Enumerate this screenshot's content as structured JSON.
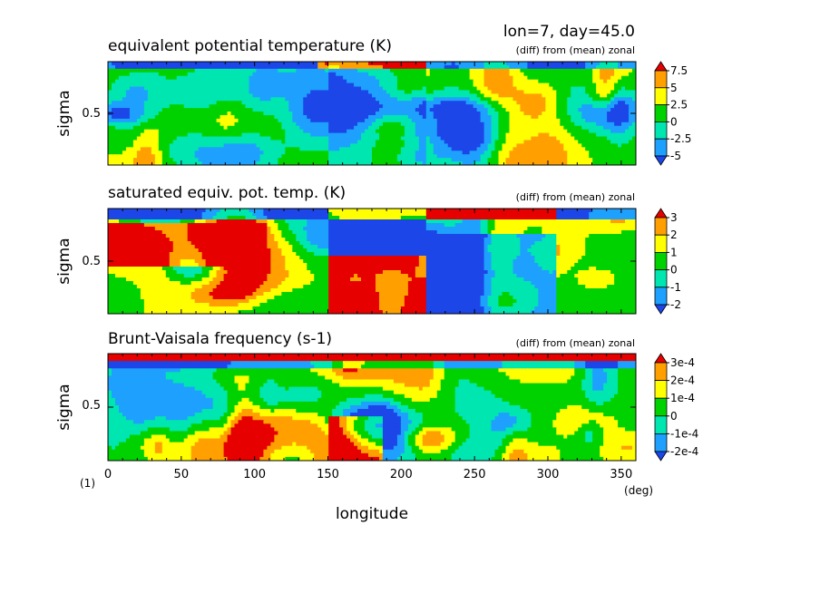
{
  "header": {
    "text": "lon=7, day=45.0"
  },
  "figure_label": "(1)",
  "chart_data": [
    {
      "type": "heatmap",
      "title": "equivalent potential temperature (K)",
      "subtitle": "(diff) from (mean) zonal",
      "xlabel": "longitude",
      "x_unit": "(deg)",
      "ylabel": "sigma",
      "xlim": [
        0,
        360
      ],
      "ylim": [
        0.95,
        0.05
      ],
      "x_ticks": [
        "0",
        "50",
        "100",
        "150",
        "200",
        "250",
        "300",
        "350"
      ],
      "y_ticks": [
        "0.5"
      ],
      "colorbar_labels": [
        "7.5",
        "5",
        "2.5",
        "0",
        "-2.5",
        "-5"
      ],
      "colorbar_colors": [
        "#1c46e8",
        "#1ea0ff",
        "#00e6b0",
        "#00d200",
        "#ffff00",
        "#ffa000",
        "#e60000"
      ],
      "grid": false
    },
    {
      "type": "heatmap",
      "title": "saturated equiv. pot. temp. (K)",
      "subtitle": "(diff) from (mean) zonal",
      "xlabel": "longitude",
      "x_unit": "(deg)",
      "ylabel": "sigma",
      "xlim": [
        0,
        360
      ],
      "ylim": [
        0.95,
        0.05
      ],
      "x_ticks": [
        "0",
        "50",
        "100",
        "150",
        "200",
        "250",
        "300",
        "350"
      ],
      "y_ticks": [
        "0.5"
      ],
      "colorbar_labels": [
        "3",
        "2",
        "1",
        "0",
        "-1",
        "-2"
      ],
      "colorbar_colors": [
        "#1c46e8",
        "#1ea0ff",
        "#00e6b0",
        "#00d200",
        "#ffff00",
        "#ffa000",
        "#e60000"
      ],
      "grid": false
    },
    {
      "type": "heatmap",
      "title": "Brunt-Vaisala frequency (s-1)",
      "subtitle": "(diff) from (mean) zonal",
      "xlabel": "longitude",
      "x_unit": "(deg)",
      "ylabel": "sigma",
      "xlim": [
        0,
        360
      ],
      "ylim": [
        0.95,
        0.05
      ],
      "x_ticks": [
        "0",
        "50",
        "100",
        "150",
        "200",
        "250",
        "300",
        "350"
      ],
      "y_ticks": [
        "0.5"
      ],
      "colorbar_labels": [
        "3e-4",
        "2e-4",
        "1e-4",
        "0",
        "-1e-4",
        "-2e-4"
      ],
      "colorbar_colors": [
        "#1c46e8",
        "#1ea0ff",
        "#00e6b0",
        "#00d200",
        "#ffff00",
        "#ffa000",
        "#e60000"
      ],
      "grid": false
    }
  ]
}
